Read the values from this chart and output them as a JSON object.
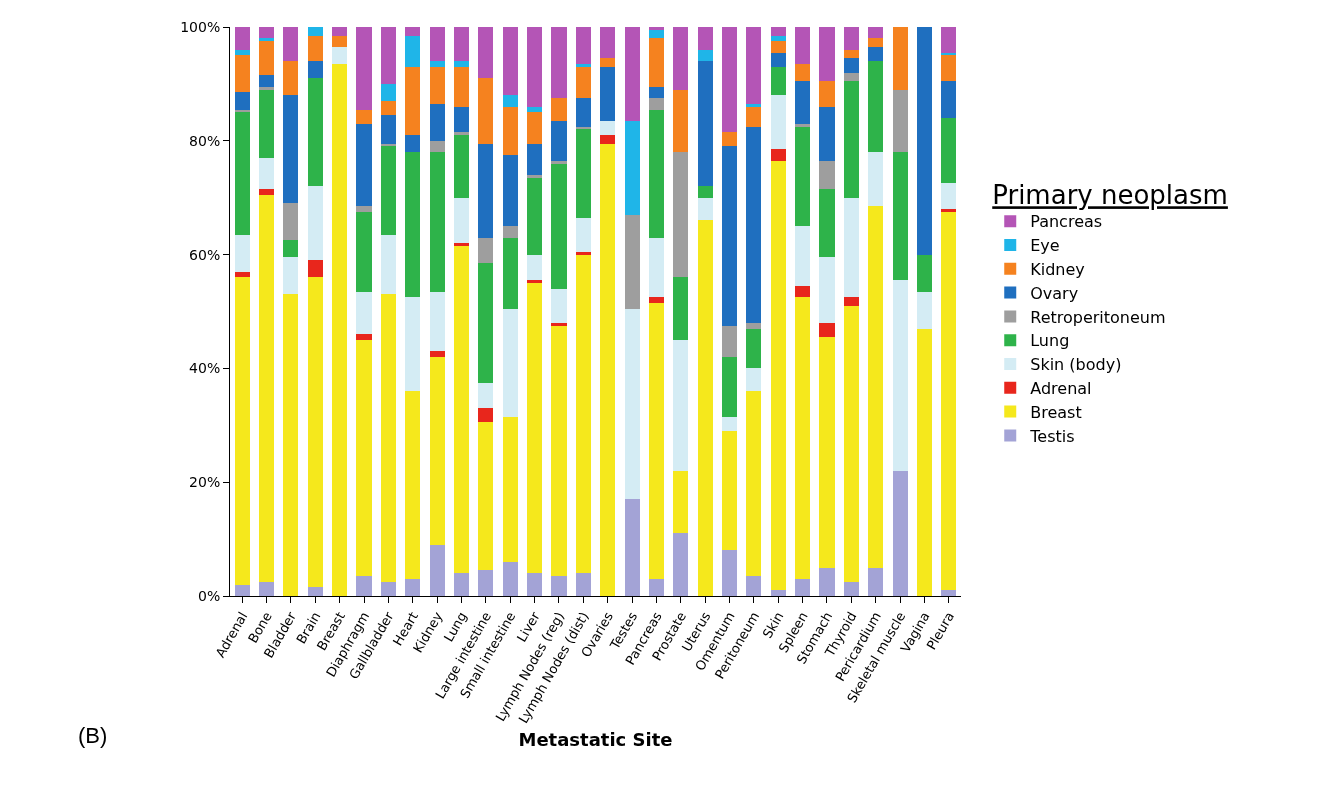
{
  "chart_data": {
    "type": "bar",
    "stacked": true,
    "xlabel": "Metastatic Site",
    "legend_title": "Primary neoplasm",
    "legend": "right",
    "grid": false,
    "annotations": [
      "(B)"
    ],
    "categories": [
      "Adrenal",
      "Bone",
      "Bladder",
      "Brain",
      "Breast",
      "Diaphragm",
      "Gallbladder",
      "Heart",
      "Kidney",
      "Lung",
      "Large intestine",
      "Small intestine",
      "Liver",
      "Lymph Nodes (reg)",
      "Lymph Nodes (dist)",
      "Ovaries",
      "Testes",
      "Pancreas",
      "Prostate",
      "Uterus",
      "Omentum",
      "Peritoneum",
      "Skin",
      "Spleen",
      "Stomach",
      "Thyroid",
      "Pericardium",
      "Skeletal muscle",
      "Vagina",
      "Pleura"
    ],
    "ylim": [
      0,
      100
    ],
    "yticks": [
      {
        "value": 0,
        "label": "0%"
      },
      {
        "value": 20,
        "label": "20%"
      },
      {
        "value": 40,
        "label": "40%"
      },
      {
        "value": 60,
        "label": "60%"
      },
      {
        "value": 80,
        "label": "80%"
      },
      {
        "value": 100,
        "label": "100%"
      }
    ],
    "series": [
      {
        "name": "Testis",
        "color": "#a3a3d6",
        "values": [
          2,
          2.5,
          0,
          1.5,
          0,
          3.5,
          2.5,
          3,
          9,
          4,
          4.5,
          6,
          4,
          3.5,
          4,
          0,
          17,
          3,
          11,
          0,
          8,
          3.5,
          1,
          3,
          5,
          2.5,
          5,
          22,
          0,
          1
        ]
      },
      {
        "name": "Breast",
        "color": "#f5e81c",
        "values": [
          54,
          68,
          53,
          54.5,
          93.5,
          41.5,
          50.5,
          33,
          33,
          57.5,
          26,
          25.5,
          51,
          44,
          56,
          79.5,
          0,
          48.5,
          11,
          66,
          21,
          32.5,
          75.5,
          49.5,
          40.5,
          48.5,
          63.5,
          0,
          47,
          66.5
        ]
      },
      {
        "name": "Adrenal",
        "color": "#e8261c",
        "values": [
          1,
          1,
          0,
          3,
          0,
          1,
          0,
          0,
          1,
          0.5,
          2.5,
          0,
          0.5,
          0.5,
          0.5,
          1.5,
          0,
          1,
          0,
          0,
          0,
          0,
          2,
          2,
          2.5,
          1.5,
          0,
          0,
          0,
          0.5
        ]
      },
      {
        "name": "Skin (body)",
        "color": "#d4ecf4",
        "values": [
          6.5,
          5.5,
          6.5,
          13,
          3,
          7.5,
          10.5,
          16.5,
          10.5,
          8,
          4.5,
          19,
          4.5,
          6,
          6,
          2.5,
          33.5,
          10.5,
          23,
          4,
          2.5,
          4,
          9.5,
          10.5,
          11.5,
          17.5,
          9.5,
          33.5,
          6.5,
          4.5
        ]
      },
      {
        "name": "Lung",
        "color": "#2eb34a",
        "values": [
          21.5,
          12,
          3,
          19,
          0,
          14,
          15.5,
          25.5,
          24.5,
          11,
          21,
          12.5,
          13.5,
          22,
          15.5,
          0,
          0,
          22.5,
          11,
          2,
          10.5,
          7,
          5,
          17.5,
          12,
          20.5,
          16,
          22.5,
          6.5,
          11.5
        ]
      },
      {
        "name": "Retroperitoneum",
        "color": "#9e9e9e",
        "values": [
          0.5,
          0.5,
          6.5,
          0,
          0,
          1,
          0.5,
          0,
          2,
          0.5,
          4.5,
          2,
          0.5,
          0.5,
          0.5,
          0,
          16.5,
          2,
          22,
          0,
          5.5,
          1,
          0,
          0.5,
          5,
          1.5,
          0,
          11,
          0,
          0
        ]
      },
      {
        "name": "Ovary",
        "color": "#1f6fbf",
        "values": [
          3,
          2,
          19,
          3,
          0,
          14.5,
          5,
          3,
          6.5,
          4.5,
          16.5,
          12.5,
          5.5,
          7,
          5,
          9.5,
          0,
          2,
          0,
          22,
          31.5,
          34.5,
          2.5,
          7.5,
          9.5,
          2.5,
          2.5,
          0,
          40,
          6.5
        ]
      },
      {
        "name": "Kidney",
        "color": "#f5821f",
        "values": [
          6.5,
          6,
          6,
          4.5,
          2,
          2.5,
          2.5,
          12,
          6.5,
          7,
          11.5,
          8.5,
          5.5,
          4,
          5.5,
          1.5,
          0,
          8.5,
          11,
          0,
          2.5,
          3.5,
          2,
          3,
          4.5,
          1.5,
          1.5,
          11,
          0,
          4.5
        ]
      },
      {
        "name": "Eye",
        "color": "#1fb5e8",
        "values": [
          1,
          0.5,
          0,
          1.5,
          0,
          0,
          3,
          5.5,
          1,
          1,
          0,
          2,
          1,
          0,
          0.5,
          0,
          16.5,
          1.5,
          0,
          2,
          0,
          0.5,
          1,
          0,
          0,
          0,
          0,
          0,
          0,
          0.5
        ]
      },
      {
        "name": "Pancreas",
        "color": "#b455b6",
        "values": [
          4,
          2,
          6,
          0,
          1.5,
          14.5,
          10,
          1.5,
          6,
          6,
          9,
          12,
          14,
          12.5,
          6.5,
          5.5,
          16.5,
          0.5,
          11,
          4,
          18.5,
          13.5,
          1.5,
          6.5,
          9.5,
          4,
          2,
          0,
          0,
          4.5
        ]
      }
    ]
  }
}
